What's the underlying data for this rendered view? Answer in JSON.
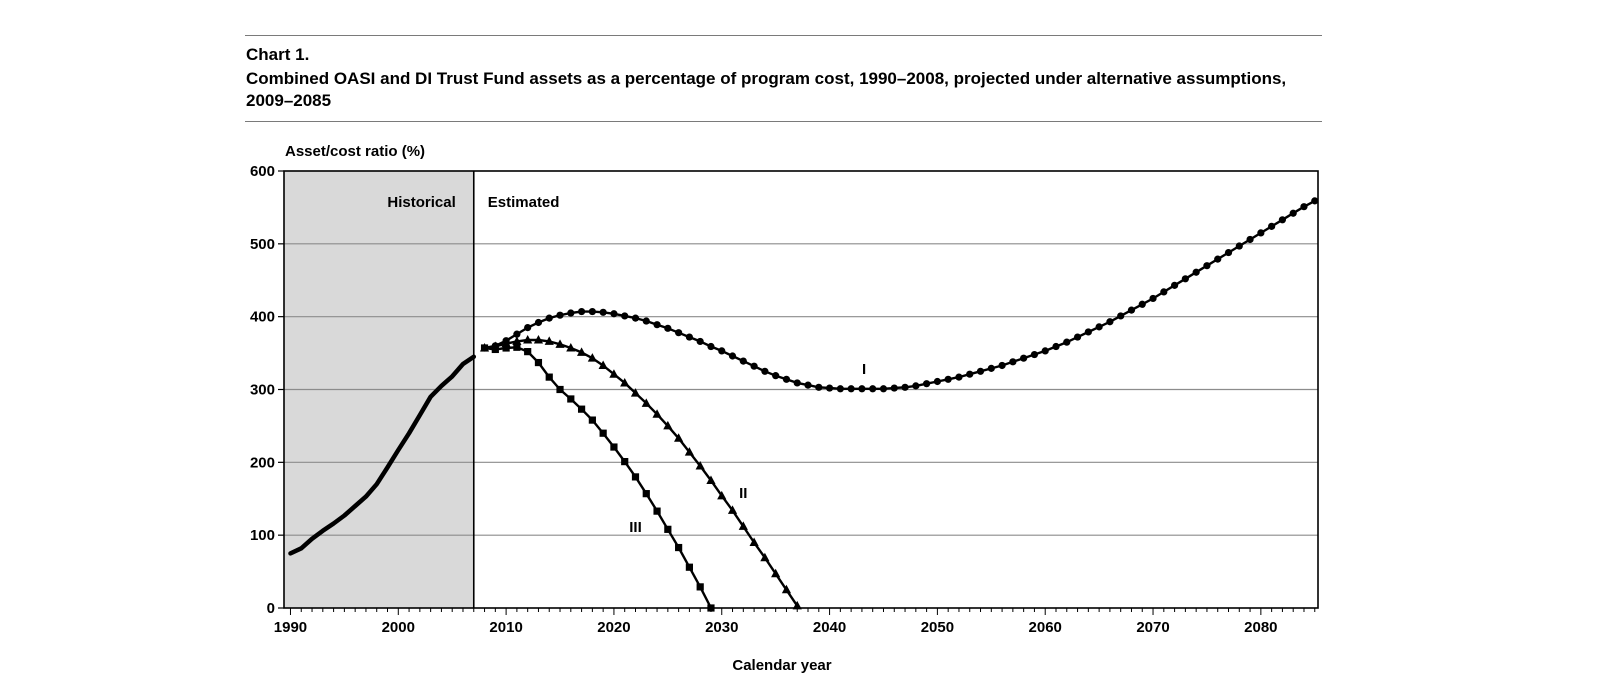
{
  "header": {
    "chart_label": "Chart 1.",
    "title": "Combined OASI and DI Trust Fund assets as a percentage of program cost, 1990–2008, projected under alternative assumptions, 2009–2085"
  },
  "colors": {
    "historical_band": "#d9d9d9",
    "line": "#000000",
    "grid": "#8c8c8c"
  },
  "chart_data": {
    "type": "line",
    "title": "Combined OASI and DI Trust Fund assets as a percentage of program cost, 1990–2008, projected under alternative assumptions, 2009–2085",
    "xlabel": "Calendar year",
    "ylabel": "Asset/cost ratio (%)",
    "xlim": [
      1989.4,
      2085.3
    ],
    "ylim": [
      0,
      600
    ],
    "x_ticks": [
      1990,
      2000,
      2010,
      2020,
      2030,
      2040,
      2050,
      2060,
      2070,
      2080
    ],
    "y_ticks": [
      0,
      100,
      200,
      300,
      400,
      500,
      600
    ],
    "grid": "horizontal",
    "regions": [
      {
        "label": "Historical",
        "from": 1989.4,
        "to": 2007
      },
      {
        "label": "Estimated",
        "from": 2007,
        "to": 2085.3
      }
    ],
    "divider_year": 2007,
    "series": [
      {
        "marker": "none",
        "points": [
          [
            1990,
            75
          ],
          [
            1991,
            82
          ],
          [
            1992,
            95
          ],
          [
            1993,
            106
          ],
          [
            1994,
            116
          ],
          [
            1995,
            127
          ],
          [
            1996,
            140
          ],
          [
            1997,
            153
          ],
          [
            1998,
            170
          ],
          [
            1999,
            193
          ],
          [
            2000,
            217
          ],
          [
            2001,
            240
          ],
          [
            2002,
            265
          ],
          [
            2003,
            290
          ],
          [
            2004,
            305
          ],
          [
            2005,
            318
          ],
          [
            2006,
            335
          ],
          [
            2007,
            345
          ]
        ]
      },
      {
        "name": "I",
        "label_at": [
          2043.2,
          328
        ],
        "marker": "circle",
        "points": [
          [
            2008,
            357
          ],
          [
            2009,
            360
          ],
          [
            2010,
            367
          ],
          [
            2011,
            376
          ],
          [
            2012,
            385
          ],
          [
            2013,
            392
          ],
          [
            2014,
            398
          ],
          [
            2015,
            402
          ],
          [
            2016,
            405
          ],
          [
            2017,
            407
          ],
          [
            2018,
            407
          ],
          [
            2019,
            406
          ],
          [
            2020,
            404
          ],
          [
            2021,
            401
          ],
          [
            2022,
            398
          ],
          [
            2023,
            394
          ],
          [
            2024,
            389
          ],
          [
            2025,
            384
          ],
          [
            2026,
            378
          ],
          [
            2027,
            372
          ],
          [
            2028,
            366
          ],
          [
            2029,
            359
          ],
          [
            2030,
            353
          ],
          [
            2031,
            346
          ],
          [
            2032,
            339
          ],
          [
            2033,
            332
          ],
          [
            2034,
            325
          ],
          [
            2035,
            319
          ],
          [
            2036,
            314
          ],
          [
            2037,
            309
          ],
          [
            2038,
            306
          ],
          [
            2039,
            303
          ],
          [
            2040,
            302
          ],
          [
            2041,
            301
          ],
          [
            2042,
            301
          ],
          [
            2043,
            301
          ],
          [
            2044,
            301
          ],
          [
            2045,
            301
          ],
          [
            2046,
            302
          ],
          [
            2047,
            303
          ],
          [
            2048,
            305
          ],
          [
            2049,
            308
          ],
          [
            2050,
            311
          ],
          [
            2051,
            314
          ],
          [
            2052,
            317
          ],
          [
            2053,
            321
          ],
          [
            2054,
            325
          ],
          [
            2055,
            329
          ],
          [
            2056,
            333
          ],
          [
            2057,
            338
          ],
          [
            2058,
            343
          ],
          [
            2059,
            348
          ],
          [
            2060,
            353
          ],
          [
            2061,
            359
          ],
          [
            2062,
            365
          ],
          [
            2063,
            372
          ],
          [
            2064,
            379
          ],
          [
            2065,
            386
          ],
          [
            2066,
            393
          ],
          [
            2067,
            401
          ],
          [
            2068,
            409
          ],
          [
            2069,
            417
          ],
          [
            2070,
            425
          ],
          [
            2071,
            434
          ],
          [
            2072,
            443
          ],
          [
            2073,
            452
          ],
          [
            2074,
            461
          ],
          [
            2075,
            470
          ],
          [
            2076,
            479
          ],
          [
            2077,
            488
          ],
          [
            2078,
            497
          ],
          [
            2079,
            506
          ],
          [
            2080,
            515
          ],
          [
            2081,
            524
          ],
          [
            2082,
            533
          ],
          [
            2083,
            542
          ],
          [
            2084,
            551
          ],
          [
            2085,
            559
          ]
        ]
      },
      {
        "name": "II",
        "label_at": [
          2032,
          158
        ],
        "marker": "triangle",
        "points": [
          [
            2008,
            357
          ],
          [
            2009,
            359
          ],
          [
            2010,
            363
          ],
          [
            2011,
            366
          ],
          [
            2012,
            368
          ],
          [
            2013,
            368
          ],
          [
            2014,
            366
          ],
          [
            2015,
            362
          ],
          [
            2016,
            357
          ],
          [
            2017,
            351
          ],
          [
            2018,
            343
          ],
          [
            2019,
            333
          ],
          [
            2020,
            321
          ],
          [
            2021,
            309
          ],
          [
            2022,
            295
          ],
          [
            2023,
            281
          ],
          [
            2024,
            266
          ],
          [
            2025,
            250
          ],
          [
            2026,
            233
          ],
          [
            2027,
            214
          ],
          [
            2028,
            195
          ],
          [
            2029,
            175
          ],
          [
            2030,
            154
          ],
          [
            2031,
            134
          ],
          [
            2032,
            112
          ],
          [
            2033,
            90
          ],
          [
            2034,
            69
          ],
          [
            2035,
            47
          ],
          [
            2036,
            25
          ],
          [
            2037,
            3
          ]
        ]
      },
      {
        "name": "III",
        "label_at": [
          2022,
          111
        ],
        "marker": "square",
        "points": [
          [
            2008,
            357
          ],
          [
            2009,
            355
          ],
          [
            2010,
            357
          ],
          [
            2011,
            358
          ],
          [
            2012,
            352
          ],
          [
            2013,
            337
          ],
          [
            2014,
            317
          ],
          [
            2015,
            300
          ],
          [
            2016,
            287
          ],
          [
            2017,
            273
          ],
          [
            2018,
            258
          ],
          [
            2019,
            240
          ],
          [
            2020,
            221
          ],
          [
            2021,
            201
          ],
          [
            2022,
            180
          ],
          [
            2023,
            157
          ],
          [
            2024,
            133
          ],
          [
            2025,
            108
          ],
          [
            2026,
            83
          ],
          [
            2027,
            56
          ],
          [
            2028,
            29
          ],
          [
            2029,
            0
          ]
        ]
      }
    ]
  }
}
